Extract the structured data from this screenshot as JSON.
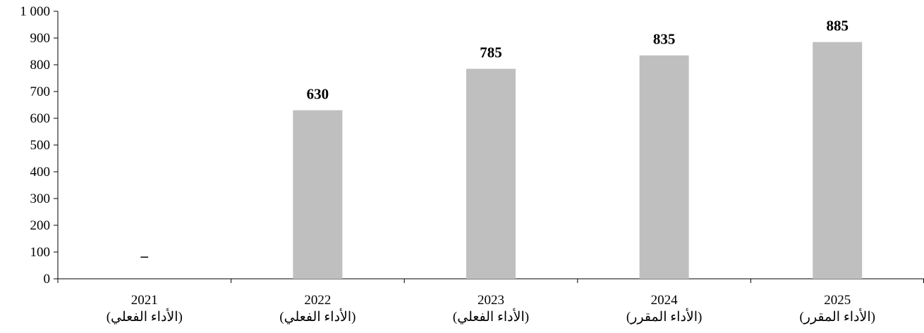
{
  "chart_data": {
    "type": "bar",
    "title": "",
    "xlabel": "",
    "ylabel": "",
    "ylim": [
      0,
      1000
    ],
    "yticks": [
      0,
      100,
      200,
      300,
      400,
      500,
      600,
      700,
      800,
      900,
      1000
    ],
    "ytick_labels": [
      "0",
      "100",
      "200",
      "300",
      "400",
      "500",
      "600",
      "700",
      "800",
      "900",
      "1 000"
    ],
    "grid": false,
    "legend": "none",
    "categories": [
      "2021",
      "2022",
      "2023",
      "2024",
      "2025"
    ],
    "category_sublabels": [
      "(الأداء الفعلي)",
      "(الأداء الفعلي)",
      "(الأداء الفعلي)",
      "(الأداء المقرر)",
      "(الأداء المقرر)"
    ],
    "values": [
      null,
      630,
      785,
      835,
      885
    ],
    "data_labels": [
      "–",
      "630",
      "785",
      "835",
      "885"
    ],
    "bar_color": "#bfbfbf"
  }
}
